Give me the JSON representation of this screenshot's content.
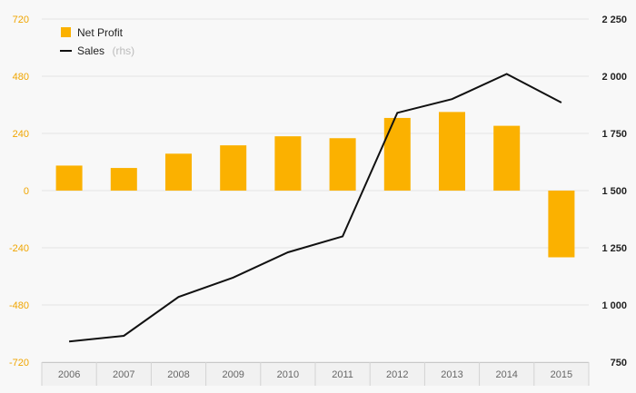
{
  "chart_data": {
    "type": "bar+line",
    "categories": [
      "2006",
      "2007",
      "2008",
      "2009",
      "2010",
      "2011",
      "2012",
      "2013",
      "2014",
      "2015"
    ],
    "series": [
      {
        "name": "Net Profit",
        "type": "bar",
        "axis": "left",
        "color": "#fbb100",
        "values": [
          105,
          95,
          155,
          190,
          228,
          220,
          305,
          330,
          272,
          -280
        ]
      },
      {
        "name": "Sales",
        "name_suffix": "(rhs)",
        "type": "line",
        "axis": "right",
        "color": "#111111",
        "values": [
          840,
          865,
          1035,
          1120,
          1230,
          1300,
          1840,
          1900,
          2010,
          1885
        ]
      }
    ],
    "y_left": {
      "ticks": [
        "720",
        "480",
        "240",
        "0",
        "-240",
        "-480",
        "-720"
      ],
      "range": [
        -720,
        720
      ],
      "color": "#f0a500"
    },
    "y_right": {
      "ticks": [
        "2 250",
        "2 000",
        "1 750",
        "1 500",
        "1 250",
        "1 000",
        "750"
      ],
      "range": [
        750,
        2250
      ]
    },
    "grid": true,
    "legend": "top-left"
  }
}
